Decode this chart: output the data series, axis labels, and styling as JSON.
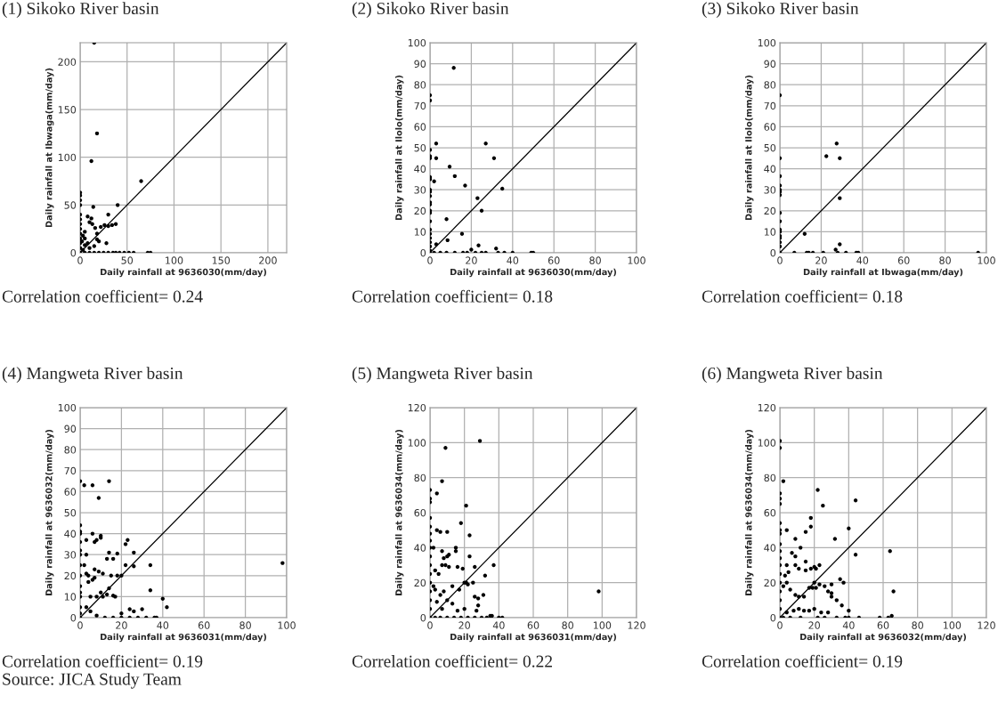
{
  "chart_data": [
    {
      "type": "scatter",
      "title": "(1) Sikoko River basin",
      "xlabel": "Daily rainfall at 9636030(mm/day)",
      "ylabel": "Daily rainfall at Ibwaga(mm/day)",
      "xlim": [
        0,
        220
      ],
      "ylim": [
        0,
        220
      ],
      "xticks": [
        0,
        50,
        100,
        150,
        200
      ],
      "yticks": [
        0,
        50,
        100,
        150,
        200
      ],
      "grid": true,
      "annotations": [
        "Correlation coefficient= 0.24"
      ],
      "series": [
        {
          "marker": "circle",
          "color": "#000000",
          "x": [
            15,
            18,
            12,
            65,
            40,
            14,
            0,
            0,
            0,
            0,
            0,
            0,
            0,
            0,
            0,
            0,
            0,
            0,
            0,
            8,
            12,
            10,
            13,
            16,
            30,
            22,
            26,
            30,
            38,
            34,
            28,
            18,
            18,
            20,
            5,
            5,
            8,
            10,
            15,
            3,
            5,
            2,
            3,
            5,
            10,
            15,
            20,
            25,
            30,
            35,
            38,
            42,
            47,
            52,
            57,
            72,
            75
          ],
          "values": [
            220,
            125,
            96,
            75,
            50,
            48,
            63,
            60,
            55,
            50,
            40,
            35,
            30,
            25,
            20,
            15,
            10,
            5,
            0,
            38,
            36,
            32,
            30,
            26,
            40,
            27,
            29,
            28,
            30,
            29,
            10,
            20,
            14,
            12,
            22,
            15,
            10,
            5,
            7,
            3,
            8,
            12,
            18,
            0,
            0,
            0,
            0,
            0,
            0,
            0,
            0,
            0,
            0,
            0,
            0,
            0,
            0
          ]
        },
        {
          "type": "line",
          "marker": "none",
          "color": "#000000",
          "x": [
            0,
            220
          ],
          "values": [
            0,
            220
          ]
        }
      ]
    },
    {
      "type": "scatter",
      "title": "(2) Sikoko River basin",
      "xlabel": "Daily rainfall at 9636030(mm/day)",
      "ylabel": "Daily rainfall at Ilolo(mm/day)",
      "xlim": [
        0,
        100
      ],
      "ylim": [
        0,
        100
      ],
      "xticks": [
        0,
        20,
        40,
        60,
        80,
        100
      ],
      "yticks": [
        0,
        10,
        20,
        30,
        40,
        50,
        60,
        70,
        80,
        90,
        100
      ],
      "grid": true,
      "annotations": [
        "Correlation coefficient= 0.18"
      ],
      "series": [
        {
          "marker": "circle",
          "color": "#000000",
          "x": [
            0,
            0,
            11.5,
            0,
            0,
            0,
            0,
            0,
            0,
            0,
            0,
            0,
            0,
            0,
            0,
            0,
            0,
            0,
            0,
            0,
            0,
            0,
            0,
            3,
            3,
            2,
            9.5,
            12,
            17,
            27,
            31,
            35,
            23,
            25,
            8,
            15.5,
            8.5,
            3,
            23.5,
            20,
            32,
            33,
            36,
            40,
            49,
            50,
            27,
            25,
            22,
            18,
            16,
            12,
            8,
            5,
            2
          ],
          "values": [
            75,
            72.5,
            88,
            49,
            46,
            45,
            36,
            35,
            30,
            29,
            27,
            24,
            23,
            20,
            19,
            15,
            11,
            9,
            7,
            5,
            3,
            1,
            0,
            52,
            45,
            34,
            41,
            36.5,
            32,
            52,
            45,
            30.5,
            26,
            20,
            16,
            9,
            6,
            4,
            3.5,
            1.5,
            2,
            0,
            0,
            0,
            0,
            0,
            0,
            0,
            0,
            0,
            0,
            0,
            0,
            0,
            0
          ]
        },
        {
          "type": "line",
          "marker": "none",
          "color": "#000000",
          "x": [
            0,
            100
          ],
          "values": [
            0,
            100
          ]
        }
      ]
    },
    {
      "type": "scatter",
      "title": "(3) Sikoko River basin",
      "xlabel": "Daily rainfall at Ibwaga(mm/day)",
      "ylabel": "Daily rainfall at Ilolo(mm/day)",
      "xlim": [
        0,
        100
      ],
      "ylim": [
        0,
        100
      ],
      "xticks": [
        0,
        20,
        40,
        60,
        80,
        100
      ],
      "yticks": [
        0,
        10,
        20,
        30,
        40,
        50,
        60,
        70,
        80,
        90,
        100
      ],
      "grid": true,
      "annotations": [
        "Correlation coefficient= 0.18"
      ],
      "series": [
        {
          "marker": "circle",
          "color": "#000000",
          "x": [
            0,
            0,
            0,
            0,
            0,
            0,
            0,
            0,
            0,
            0,
            0,
            0,
            0,
            0,
            0,
            0,
            12,
            22.5,
            27.5,
            29,
            29,
            29,
            27,
            28,
            7,
            13,
            14,
            16,
            21,
            32,
            37,
            38,
            96
          ],
          "values": [
            75,
            45,
            36.5,
            32,
            30,
            29,
            27.5,
            19,
            15,
            11,
            10,
            8,
            7,
            5,
            3,
            0,
            9,
            46,
            52,
            45,
            26,
            4,
            1.5,
            0,
            0,
            0,
            0,
            0,
            0,
            0,
            0,
            0,
            0
          ]
        },
        {
          "type": "line",
          "marker": "none",
          "color": "#000000",
          "x": [
            0,
            100
          ],
          "values": [
            0,
            100
          ]
        }
      ]
    },
    {
      "type": "scatter",
      "title": "(4) Mangweta River basin",
      "xlabel": "Daily rainfall at 9636031(mm/day)",
      "ylabel": "Daily rainfall at 9636032(mm/day)",
      "xlim": [
        0,
        100
      ],
      "ylim": [
        0,
        100
      ],
      "xticks": [
        0,
        20,
        40,
        60,
        80,
        100
      ],
      "yticks": [
        0,
        10,
        20,
        30,
        40,
        50,
        60,
        70,
        80,
        90,
        100
      ],
      "grid": true,
      "annotations": [
        "Correlation coefficient= 0.19",
        "Source: JICA Study Team"
      ],
      "series": [
        {
          "marker": "circle",
          "color": "#000000",
          "x": [
            0,
            2,
            6,
            14,
            9,
            0,
            0,
            0,
            0,
            0,
            0,
            0,
            0,
            0,
            0,
            0,
            0,
            0,
            0,
            3,
            6,
            7,
            8,
            10,
            10,
            14,
            16,
            18,
            13,
            11,
            15,
            18,
            20,
            3,
            2,
            3,
            4,
            7,
            6,
            4,
            5,
            8,
            7,
            9,
            10,
            11,
            13,
            14,
            16,
            17,
            22,
            23,
            22,
            26,
            26,
            34,
            34,
            40,
            42,
            98,
            20,
            24,
            26,
            30,
            3,
            5,
            8,
            12,
            16,
            20,
            24,
            28,
            32,
            36,
            37
          ],
          "values": [
            65,
            63,
            63,
            65,
            57,
            44,
            41,
            40,
            36,
            32,
            30,
            25,
            20,
            15,
            12,
            10,
            5,
            2,
            0,
            37,
            40,
            36,
            37,
            39,
            38,
            31,
            28,
            30.5,
            28,
            21,
            20,
            20,
            20,
            30,
            25,
            21,
            20,
            19,
            18,
            17,
            10,
            10,
            23,
            22,
            12,
            10,
            11,
            14,
            10.5,
            10,
            35,
            37,
            25,
            24.5,
            31,
            25,
            13,
            9,
            5,
            26,
            2,
            4,
            3,
            4,
            5,
            3,
            1,
            0,
            0,
            0,
            0,
            0,
            0,
            0,
            0
          ]
        },
        {
          "type": "line",
          "marker": "none",
          "color": "#000000",
          "x": [
            0,
            100
          ],
          "values": [
            0,
            100
          ]
        }
      ]
    },
    {
      "type": "scatter",
      "title": "(5) Mangweta River basin",
      "xlabel": "Daily rainfall at 9636031(mm/day)",
      "ylabel": "Daily rainfall at 9636034(mm/day)",
      "xlim": [
        0,
        120
      ],
      "ylim": [
        0,
        120
      ],
      "xticks": [
        0,
        20,
        40,
        60,
        80,
        100,
        120
      ],
      "yticks": [
        0,
        20,
        40,
        60,
        80,
        100,
        120
      ],
      "grid": true,
      "annotations": [
        "Correlation coefficient= 0.22"
      ],
      "series": [
        {
          "marker": "circle",
          "color": "#000000",
          "x": [
            0,
            0,
            0,
            0,
            0,
            0,
            0,
            0,
            0,
            0,
            0,
            0,
            0,
            0,
            0,
            0,
            4,
            7,
            9,
            29,
            21,
            18,
            23,
            4,
            6,
            10,
            2,
            7,
            8,
            10,
            11,
            7,
            9,
            11,
            15,
            15,
            16,
            19,
            23,
            26,
            37,
            32,
            25,
            20,
            22,
            26,
            31,
            28,
            21,
            17,
            13,
            10,
            8,
            6,
            4,
            3,
            5,
            3,
            2,
            7,
            13,
            16,
            20,
            27,
            28,
            98,
            35,
            36,
            40,
            42,
            33,
            30,
            26,
            22,
            18,
            14,
            10,
            6,
            3
          ],
          "values": [
            73,
            68,
            66,
            57,
            52,
            48,
            44,
            40,
            35,
            30,
            25,
            20,
            15,
            10,
            5,
            0,
            71,
            78,
            97,
            101,
            64,
            54,
            47,
            50,
            49,
            49,
            40,
            38,
            34,
            35,
            36,
            30,
            30,
            29,
            40,
            38,
            29,
            28,
            35,
            29,
            30,
            24,
            20,
            20,
            19,
            12,
            13,
            11,
            20,
            16,
            18,
            10,
            15,
            13,
            9,
            16,
            25,
            27,
            18,
            5,
            8,
            4,
            5,
            4,
            7,
            15,
            1,
            1,
            0,
            0,
            0,
            0,
            0,
            0,
            0,
            0,
            0,
            0,
            0
          ]
        },
        {
          "type": "line",
          "marker": "none",
          "color": "#000000",
          "x": [
            0,
            120
          ],
          "values": [
            0,
            120
          ]
        }
      ]
    },
    {
      "type": "scatter",
      "title": "(6) Mangweta River basin",
      "xlabel": "Daily rainfall at 9636032(mm/day)",
      "ylabel": "Daily rainfall at 9636034(mm/day)",
      "xlim": [
        0,
        120
      ],
      "ylim": [
        0,
        120
      ],
      "xticks": [
        0,
        20,
        40,
        60,
        80,
        100,
        120
      ],
      "yticks": [
        0,
        20,
        40,
        60,
        80,
        100,
        120
      ],
      "grid": true,
      "annotations": [
        "Correlation coefficient= 0.19"
      ],
      "series": [
        {
          "marker": "circle",
          "color": "#000000",
          "x": [
            0,
            0,
            2,
            0,
            0,
            0,
            0,
            0,
            0,
            0,
            0,
            0,
            0,
            0,
            0,
            0,
            0,
            0,
            0,
            4,
            9,
            12,
            7,
            9,
            4,
            9,
            11,
            15,
            15,
            18,
            20,
            21,
            23,
            15,
            18,
            18,
            22,
            25,
            32,
            40,
            44,
            44,
            64,
            66,
            3,
            5,
            4,
            2,
            6,
            9,
            11,
            14,
            17,
            19,
            20,
            21,
            23,
            26,
            28,
            30,
            30,
            30,
            35,
            37,
            33,
            36,
            40,
            4,
            8,
            11,
            14,
            17,
            20,
            24,
            28,
            33,
            38,
            40,
            46,
            58,
            63,
            65,
            22,
            26,
            12,
            6,
            2
          ],
          "values": [
            101,
            97,
            78,
            71,
            68,
            65,
            54,
            50,
            48,
            42,
            38,
            34,
            30,
            25,
            20,
            15,
            10,
            5,
            0,
            50,
            45,
            40,
            37,
            35,
            30,
            30,
            28,
            32,
            27,
            28,
            29,
            28,
            30,
            49,
            57,
            52,
            73,
            64,
            45,
            51,
            67,
            36,
            38,
            15,
            24,
            26,
            20,
            18,
            16,
            13,
            12,
            12,
            17,
            17,
            20,
            17,
            19,
            18,
            15,
            14,
            12,
            19,
            22,
            20,
            10,
            7,
            4,
            3,
            4,
            5,
            4,
            4,
            5,
            3,
            3,
            0,
            0,
            0,
            0,
            0,
            0,
            1,
            0,
            0,
            0,
            0,
            0
          ]
        },
        {
          "type": "line",
          "marker": "none",
          "color": "#000000",
          "x": [
            0,
            120
          ],
          "values": [
            0,
            120
          ]
        }
      ]
    }
  ]
}
